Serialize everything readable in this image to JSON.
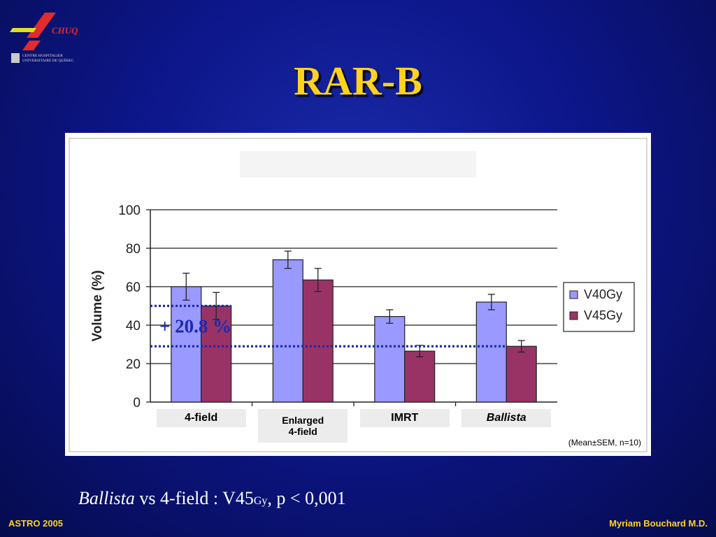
{
  "logo": {
    "brand": "CHUQ",
    "line1": "CENTRE HOSPITALIER",
    "line2": "UNIVERSITAIRE DE QUÉBEC"
  },
  "title": "RAR-B",
  "chart_data": {
    "type": "bar",
    "categories": [
      "4-field",
      "Enlarged 4-field",
      "IMRT",
      "Ballista"
    ],
    "category_lines": [
      [
        "4-field"
      ],
      [
        "Enlarged",
        "4-field"
      ],
      [
        "IMRT"
      ],
      [
        "Ballista"
      ]
    ],
    "series": [
      {
        "name": "V40Gy",
        "values": [
          60,
          74,
          44.5,
          52
        ],
        "errors": [
          7,
          4.5,
          3.5,
          4
        ],
        "color": "#9999ff"
      },
      {
        "name": "V45Gy",
        "values": [
          50,
          63.5,
          26.5,
          29
        ],
        "errors": [
          7,
          6,
          3,
          3
        ],
        "color": "#993366"
      }
    ],
    "ylabel": "Volume (%)",
    "ylim": [
      0,
      100
    ],
    "yticks": [
      0,
      20,
      40,
      60,
      80,
      100
    ],
    "grid": true,
    "legend": "right",
    "annotation": {
      "text": "+ 20.8 %",
      "lines": [
        50,
        29
      ],
      "color": "#1a2ab0"
    },
    "footnote": "(Mean±SEM, n=10)"
  },
  "subtitle": {
    "part1": "Ballista",
    "part2": " vs 4-field : V45",
    "sub": "Gy",
    "part3": ",  p < 0,001"
  },
  "footer": {
    "left": "ASTRO 2005",
    "right": "Myriam Bouchard M.D."
  }
}
